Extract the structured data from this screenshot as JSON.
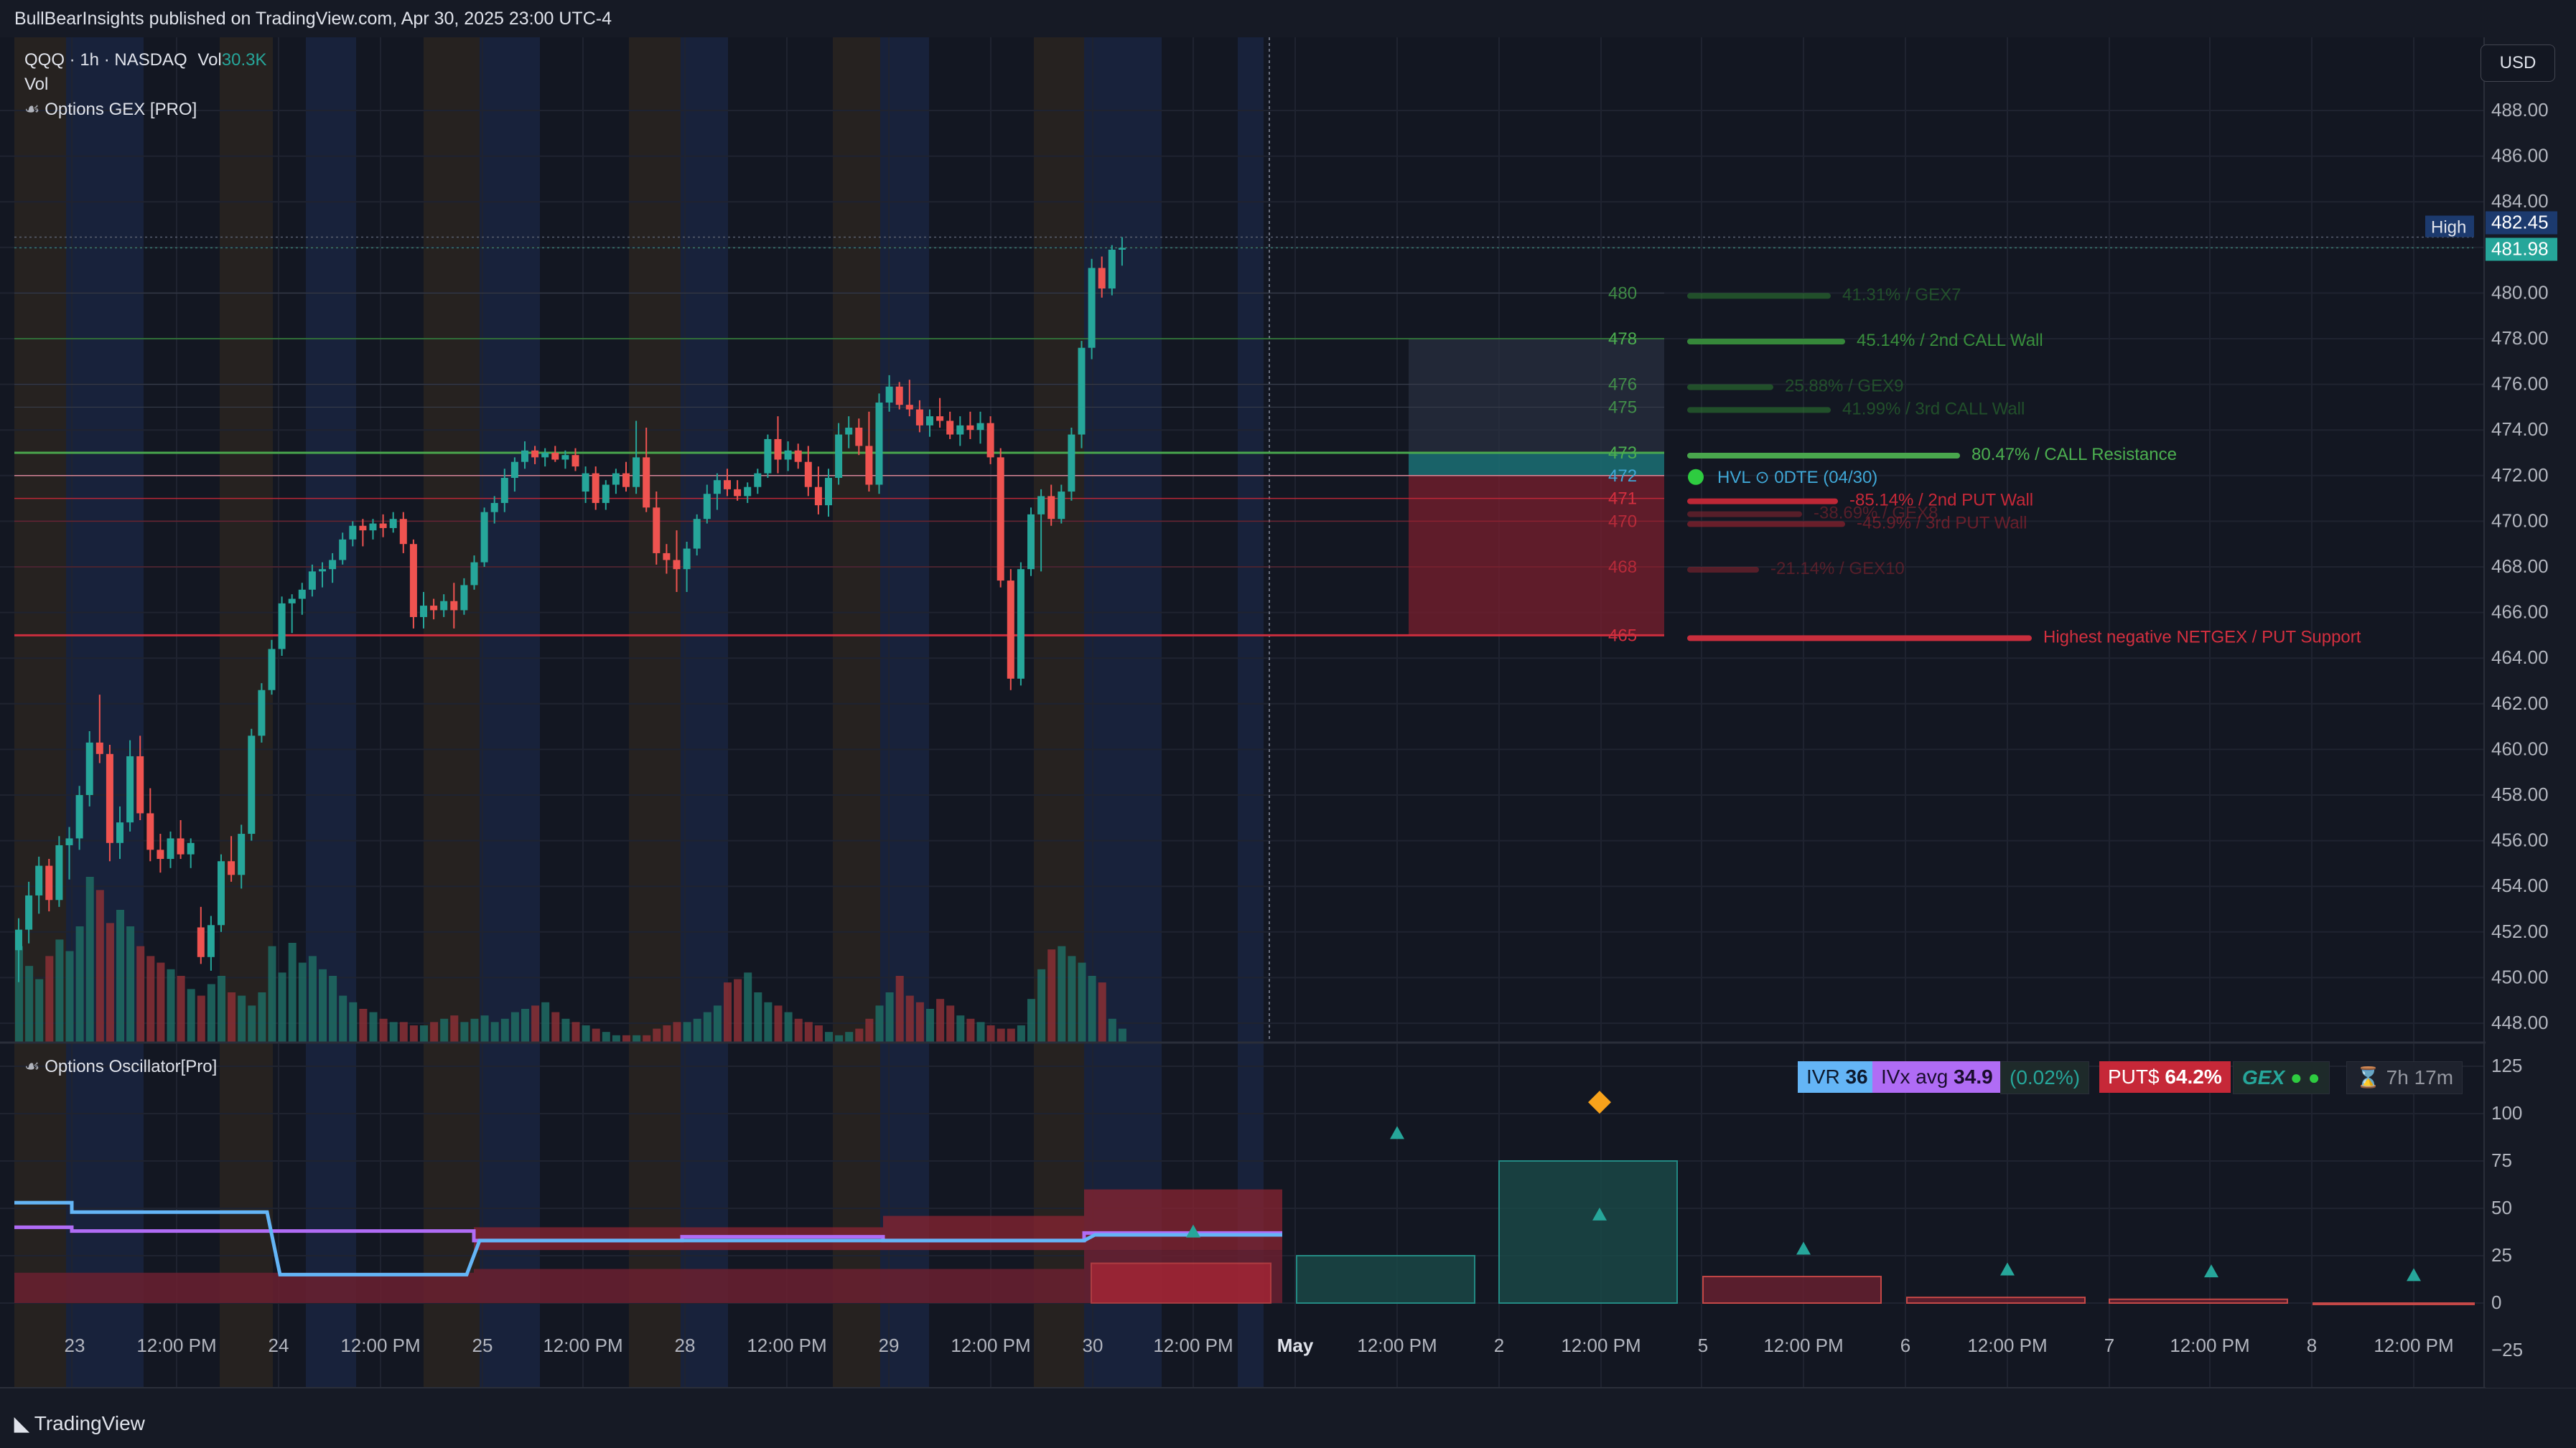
{
  "header": {
    "published": "BullBearInsights published on TradingView.com, Apr 30, 2025 23:00 UTC-4"
  },
  "legend": {
    "symbol": "QQQ · 1h · NASDAQ",
    "vol_label": "Vol",
    "vol_value": "30.3K",
    "vol_row": "Vol",
    "indicator_name": "Options GEX [PRO]"
  },
  "oscillator": {
    "name": "Options Oscillator[Pro]",
    "badges": {
      "ivr_label": "IVR",
      "ivr_value": "36",
      "ivx_label": "IVx avg",
      "ivx_value": "34.9",
      "change": "(0.02%)",
      "puts_label": "PUT$",
      "puts_value": "64.2%",
      "gex_label": "GEX",
      "time": "7h 17m"
    }
  },
  "currency_button": "USD",
  "price_axis": {
    "ticks": [
      "488.00",
      "486.00",
      "484.00",
      "480.00",
      "478.00",
      "476.00",
      "474.00",
      "472.00",
      "470.00",
      "468.00",
      "466.00",
      "464.00",
      "462.00",
      "460.00",
      "458.00",
      "456.00",
      "454.00",
      "452.00",
      "450.00",
      "448.00"
    ],
    "high_label": "High",
    "high_value": "482.45",
    "last_value": "481.98"
  },
  "osc_axis": {
    "ticks": [
      "125",
      "100",
      "75",
      "50",
      "25",
      "0",
      "−25"
    ]
  },
  "time_axis": {
    "labels": [
      "23",
      "12:00 PM",
      "24",
      "12:00 PM",
      "25",
      "12:00 PM",
      "28",
      "12:00 PM",
      "29",
      "12:00 PM",
      "30",
      "12:00 PM",
      "May",
      "12:00 PM",
      "2",
      "12:00 PM",
      "5",
      "12:00 PM",
      "6",
      "12:00 PM",
      "7",
      "12:00 PM",
      "8",
      "12:00 PM"
    ]
  },
  "gex_levels": [
    {
      "strike": "480",
      "price": 480.0,
      "text": "41.31% / GEX7",
      "color": "#2e7d32",
      "faded": true
    },
    {
      "strike": "478",
      "price": 478.0,
      "text": "45.14% / 2nd CALL Wall",
      "color": "#388e3c",
      "faded": false
    },
    {
      "strike": "476",
      "price": 476.0,
      "text": "25.88% / GEX9",
      "color": "#2e7d32",
      "faded": true
    },
    {
      "strike": "475",
      "price": 475.0,
      "text": "41.99% / 3rd CALL Wall",
      "color": "#2e7d32",
      "faded": true
    },
    {
      "strike": "473",
      "price": 473.0,
      "text": "80.47% / CALL Resistance",
      "color": "#4caf50",
      "faded": false
    },
    {
      "strike": "472",
      "price": 472.0,
      "text": "HVL ⊙ 0DTE (04/30)",
      "color": "#3fa7d6",
      "faded": false
    },
    {
      "strike": "471",
      "price": 471.0,
      "text": "-85.14% / 2nd PUT Wall",
      "color": "#c62838",
      "faded": false
    },
    {
      "strike": "",
      "price": 471.0,
      "text": "-38.69% / GEX8",
      "color": "#8e2430",
      "faded": true
    },
    {
      "strike": "470",
      "price": 470.0,
      "text": "-45.9% / 3rd PUT Wall",
      "color": "#b02432",
      "faded": true
    },
    {
      "strike": "468",
      "price": 468.0,
      "text": "-21.14% / GEX10",
      "color": "#8e2430",
      "faded": true
    },
    {
      "strike": "465",
      "price": 465.0,
      "text": "Highest negative NETGEX / PUT Support",
      "color": "#d32f3f",
      "faded": false
    }
  ],
  "brand": "TradingView",
  "colors": {
    "up": "#26a69a",
    "down": "#ef5350",
    "background": "#161a25",
    "call": "#4caf50",
    "put": "#d32f3f",
    "ivr_bg": "#64b5f6",
    "ivx_bg": "#b06cf5",
    "puts_bg": "#c62838"
  },
  "chart_data": {
    "type": "candlestick",
    "y_range": [
      447,
      490
    ],
    "candles": [
      [
        451.2,
        452.6,
        449.8,
        452.1
      ],
      [
        452.1,
        454.2,
        451.5,
        453.6
      ],
      [
        453.6,
        455.3,
        452.8,
        454.9
      ],
      [
        454.9,
        455.2,
        452.9,
        453.4
      ],
      [
        453.4,
        456.2,
        453.1,
        455.8
      ],
      [
        455.8,
        456.6,
        454.3,
        456.1
      ],
      [
        456.1,
        458.4,
        455.6,
        458.0
      ],
      [
        458.0,
        460.8,
        457.5,
        460.3
      ],
      [
        460.3,
        462.4,
        459.4,
        459.8
      ],
      [
        459.8,
        460.2,
        455.1,
        455.9
      ],
      [
        455.9,
        457.5,
        455.2,
        456.8
      ],
      [
        456.8,
        460.4,
        456.4,
        459.7
      ],
      [
        459.7,
        460.6,
        456.9,
        457.2
      ],
      [
        457.2,
        458.3,
        455.1,
        455.6
      ],
      [
        455.6,
        456.3,
        454.6,
        455.2
      ],
      [
        455.2,
        456.4,
        454.8,
        456.1
      ],
      [
        456.1,
        456.9,
        455.2,
        455.4
      ],
      [
        455.4,
        456.1,
        454.8,
        455.9
      ],
      [
        452.2,
        453.1,
        450.6,
        450.9
      ],
      [
        450.9,
        452.7,
        450.3,
        452.3
      ],
      [
        452.3,
        455.4,
        452.0,
        455.1
      ],
      [
        455.1,
        456.2,
        454.2,
        454.5
      ],
      [
        454.5,
        456.7,
        453.9,
        456.3
      ],
      [
        456.3,
        460.9,
        456.0,
        460.6
      ],
      [
        460.6,
        462.9,
        460.3,
        462.6
      ],
      [
        462.6,
        464.8,
        462.4,
        464.4
      ],
      [
        464.4,
        466.7,
        464.1,
        466.4
      ],
      [
        466.4,
        466.8,
        465.1,
        466.6
      ],
      [
        466.6,
        467.3,
        465.9,
        467.0
      ],
      [
        467.0,
        468.1,
        466.7,
        467.8
      ],
      [
        467.8,
        468.2,
        467.1,
        467.9
      ],
      [
        467.9,
        468.6,
        467.3,
        468.3
      ],
      [
        468.3,
        469.5,
        468.1,
        469.2
      ],
      [
        469.2,
        470.0,
        468.9,
        469.8
      ],
      [
        469.8,
        470.1,
        468.9,
        469.6
      ],
      [
        469.6,
        470.1,
        469.2,
        469.9
      ],
      [
        469.9,
        470.3,
        469.3,
        469.7
      ],
      [
        469.7,
        470.4,
        469.5,
        470.1
      ],
      [
        470.1,
        470.4,
        468.6,
        469.0
      ],
      [
        469.0,
        469.2,
        465.3,
        465.8
      ],
      [
        465.8,
        466.9,
        465.3,
        466.3
      ],
      [
        466.3,
        466.6,
        465.7,
        466.1
      ],
      [
        466.1,
        466.8,
        465.8,
        466.5
      ],
      [
        466.5,
        467.3,
        465.3,
        466.1
      ],
      [
        466.1,
        467.5,
        465.9,
        467.2
      ],
      [
        467.2,
        468.5,
        467.0,
        468.2
      ],
      [
        468.2,
        470.6,
        468.0,
        470.4
      ],
      [
        470.4,
        471.1,
        469.9,
        470.8
      ],
      [
        470.8,
        472.3,
        470.4,
        471.9
      ],
      [
        471.9,
        472.8,
        471.3,
        472.6
      ],
      [
        472.6,
        473.5,
        472.3,
        473.1
      ],
      [
        473.1,
        473.3,
        472.5,
        472.8
      ],
      [
        472.8,
        473.2,
        472.4,
        473.0
      ],
      [
        473.0,
        473.3,
        472.6,
        472.7
      ],
      [
        472.7,
        473.1,
        472.3,
        472.9
      ],
      [
        472.9,
        473.2,
        472.2,
        472.4
      ],
      [
        471.3,
        472.4,
        470.8,
        472.1
      ],
      [
        472.1,
        472.4,
        470.5,
        470.8
      ],
      [
        470.8,
        471.8,
        470.5,
        471.6
      ],
      [
        471.6,
        472.3,
        471.2,
        472.1
      ],
      [
        472.1,
        472.6,
        471.3,
        471.5
      ],
      [
        471.5,
        474.4,
        471.2,
        472.8
      ],
      [
        472.8,
        474.1,
        470.4,
        470.6
      ],
      [
        470.6,
        471.3,
        468.1,
        468.6
      ],
      [
        468.6,
        469.0,
        467.7,
        468.3
      ],
      [
        468.3,
        469.6,
        466.9,
        467.9
      ],
      [
        467.9,
        469.1,
        466.9,
        468.8
      ],
      [
        468.8,
        470.3,
        468.5,
        470.1
      ],
      [
        470.1,
        471.6,
        469.9,
        471.2
      ],
      [
        471.2,
        472.1,
        470.5,
        471.8
      ],
      [
        471.8,
        472.3,
        471.1,
        471.4
      ],
      [
        471.4,
        471.8,
        470.9,
        471.1
      ],
      [
        471.1,
        471.7,
        470.8,
        471.5
      ],
      [
        471.5,
        472.3,
        471.2,
        472.1
      ],
      [
        472.1,
        473.8,
        471.9,
        473.6
      ],
      [
        473.6,
        474.6,
        472.1,
        472.7
      ],
      [
        472.7,
        473.5,
        472.2,
        473.1
      ],
      [
        473.1,
        473.4,
        472.3,
        472.6
      ],
      [
        472.6,
        473.3,
        471.1,
        471.5
      ],
      [
        471.5,
        472.4,
        470.3,
        470.7
      ],
      [
        470.7,
        472.3,
        470.2,
        471.9
      ],
      [
        471.9,
        474.3,
        471.6,
        473.8
      ],
      [
        473.8,
        474.6,
        473.2,
        474.1
      ],
      [
        474.1,
        474.5,
        472.9,
        473.3
      ],
      [
        473.3,
        474.8,
        471.3,
        471.6
      ],
      [
        471.6,
        475.6,
        471.2,
        475.2
      ],
      [
        475.2,
        476.4,
        474.8,
        475.9
      ],
      [
        475.9,
        476.1,
        474.9,
        475.1
      ],
      [
        475.1,
        476.2,
        474.6,
        474.9
      ],
      [
        474.9,
        475.3,
        473.9,
        474.2
      ],
      [
        474.2,
        474.9,
        473.7,
        474.6
      ],
      [
        474.6,
        475.4,
        474.1,
        474.4
      ],
      [
        474.4,
        474.8,
        473.6,
        473.8
      ],
      [
        473.8,
        474.6,
        473.3,
        474.2
      ],
      [
        474.2,
        474.8,
        473.6,
        474.0
      ],
      [
        474.0,
        474.8,
        473.4,
        474.3
      ],
      [
        474.3,
        474.6,
        472.5,
        472.8
      ],
      [
        472.8,
        473.2,
        467.1,
        467.4
      ],
      [
        467.4,
        467.9,
        462.6,
        463.1
      ],
      [
        463.1,
        468.2,
        462.8,
        467.9
      ],
      [
        467.9,
        470.6,
        467.6,
        470.3
      ],
      [
        470.3,
        471.4,
        467.8,
        471.1
      ],
      [
        471.1,
        471.6,
        469.8,
        470.1
      ],
      [
        470.1,
        471.6,
        469.9,
        471.3
      ],
      [
        471.3,
        474.1,
        470.9,
        473.8
      ],
      [
        473.8,
        477.9,
        473.2,
        477.6
      ],
      [
        477.6,
        481.5,
        477.1,
        481.1
      ],
      [
        481.1,
        481.6,
        479.8,
        480.2
      ],
      [
        480.2,
        482.1,
        479.9,
        481.9
      ],
      [
        481.9,
        482.45,
        481.2,
        481.98
      ]
    ],
    "volume_max": 100,
    "volume": [
      58,
      46,
      38,
      52,
      62,
      55,
      70,
      100,
      92,
      72,
      80,
      70,
      58,
      52,
      48,
      44,
      40,
      32,
      28,
      35,
      40,
      30,
      28,
      22,
      30,
      58,
      42,
      60,
      48,
      52,
      44,
      40,
      28,
      24,
      20,
      18,
      14,
      12,
      12,
      10,
      10,
      12,
      14,
      16,
      12,
      14,
      16,
      12,
      14,
      18,
      20,
      22,
      24,
      18,
      14,
      12,
      10,
      8,
      6,
      4,
      4,
      4,
      4,
      8,
      10,
      12,
      12,
      14,
      18,
      22,
      36,
      38,
      42,
      30,
      24,
      22,
      18,
      14,
      12,
      10,
      6,
      4,
      6,
      8,
      14,
      22,
      30,
      40,
      28,
      24,
      20,
      26,
      22,
      16,
      14,
      12,
      10,
      8,
      8,
      10,
      26,
      44,
      56,
      58,
      52,
      48,
      40,
      36,
      14,
      8
    ],
    "oscillator": {
      "y_range": [
        -25,
        125
      ],
      "bars": [
        {
          "value": 25,
          "up": true
        },
        {
          "value": 75,
          "up": true
        },
        {
          "value": 14,
          "up": false
        },
        {
          "value": 3,
          "up": false
        },
        {
          "value": 2,
          "up": false
        },
        {
          "value": 0,
          "up": false
        }
      ],
      "markers": [
        38,
        90,
        47,
        29,
        18,
        17,
        15
      ],
      "diamond": 106
    }
  }
}
